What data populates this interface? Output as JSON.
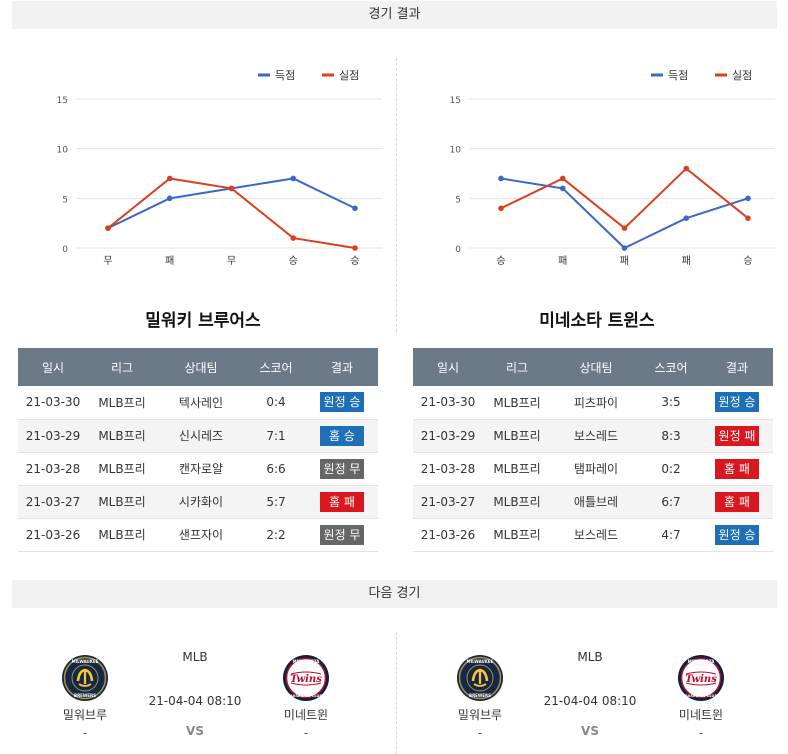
{
  "sections": {
    "results": "경기 결과",
    "next": "다음 경기"
  },
  "legend": {
    "scored": "득점",
    "conceded": "실점"
  },
  "colors": {
    "scored": "#3a67c8",
    "conceded": "#d9401f",
    "away_win": "#1f6fb8",
    "home_win": "#1f6fb8",
    "draw": "#666666",
    "loss": "#d9171e"
  },
  "chart_data": [
    {
      "type": "line",
      "categories": [
        "무",
        "패",
        "무",
        "승",
        "승"
      ],
      "series": [
        {
          "name": "득점",
          "values": [
            2,
            5,
            6,
            7,
            4
          ]
        },
        {
          "name": "실점",
          "values": [
            2,
            7,
            6,
            1,
            0
          ]
        }
      ],
      "ylim": [
        0,
        15
      ],
      "yticks": [
        0,
        5,
        10,
        15
      ],
      "grid": true,
      "legend": "top-right"
    },
    {
      "type": "line",
      "categories": [
        "승",
        "패",
        "패",
        "패",
        "승"
      ],
      "series": [
        {
          "name": "득점",
          "values": [
            7,
            6,
            0,
            3,
            5
          ]
        },
        {
          "name": "실점",
          "values": [
            4,
            7,
            2,
            8,
            3
          ]
        }
      ],
      "ylim": [
        0,
        15
      ],
      "yticks": [
        0,
        5,
        10,
        15
      ],
      "grid": true,
      "legend": "top-right"
    }
  ],
  "table_headers": [
    "일시",
    "리그",
    "상대팀",
    "스코어",
    "결과"
  ],
  "teams": [
    {
      "title": "밀워키 브루어스",
      "rows": [
        {
          "date": "21-03-30",
          "league": "MLB프리",
          "opponent": "텍사레인",
          "score": "0:4",
          "result": "원정 승",
          "result_type": "away_win"
        },
        {
          "date": "21-03-29",
          "league": "MLB프리",
          "opponent": "신시레즈",
          "score": "7:1",
          "result": "홈 승",
          "result_type": "home_win"
        },
        {
          "date": "21-03-28",
          "league": "MLB프리",
          "opponent": "캔자로얄",
          "score": "6:6",
          "result": "원정 무",
          "result_type": "draw"
        },
        {
          "date": "21-03-27",
          "league": "MLB프리",
          "opponent": "시카화이",
          "score": "5:7",
          "result": "홈 패",
          "result_type": "loss"
        },
        {
          "date": "21-03-26",
          "league": "MLB프리",
          "opponent": "샌프자이",
          "score": "2:2",
          "result": "원정 무",
          "result_type": "draw"
        }
      ]
    },
    {
      "title": "미네소타 트윈스",
      "rows": [
        {
          "date": "21-03-30",
          "league": "MLB프리",
          "opponent": "피츠파이",
          "score": "3:5",
          "result": "원정 승",
          "result_type": "away_win"
        },
        {
          "date": "21-03-29",
          "league": "MLB프리",
          "opponent": "보스레드",
          "score": "8:3",
          "result": "원정 패",
          "result_type": "loss"
        },
        {
          "date": "21-03-28",
          "league": "MLB프리",
          "opponent": "탬파레이",
          "score": "0:2",
          "result": "홈 패",
          "result_type": "loss"
        },
        {
          "date": "21-03-27",
          "league": "MLB프리",
          "opponent": "애틀브레",
          "score": "6:7",
          "result": "홈 패",
          "result_type": "loss"
        },
        {
          "date": "21-03-26",
          "league": "MLB프리",
          "opponent": "보스레드",
          "score": "4:7",
          "result": "원정 승",
          "result_type": "away_win"
        }
      ]
    }
  ],
  "next_matches": [
    {
      "league": "MLB",
      "time": "21-04-04 08:10",
      "vs": "VS",
      "home": {
        "name": "밀워브루",
        "score": "-",
        "logo_icon": "brewers-logo-icon",
        "logo_text_top": "MILWAUKEE",
        "logo_text_bottom": "BREWERS"
      },
      "away": {
        "name": "미네트윈",
        "score": "-",
        "logo_icon": "twins-logo-icon",
        "logo_text_top": "MINNESOTA",
        "logo_text_bottom": "BASEBALL CLUB"
      }
    },
    {
      "league": "MLB",
      "time": "21-04-04 08:10",
      "vs": "VS",
      "home": {
        "name": "밀워브루",
        "score": "-",
        "logo_icon": "brewers-logo-icon",
        "logo_text_top": "MILWAUKEE",
        "logo_text_bottom": "BREWERS"
      },
      "away": {
        "name": "미네트윈",
        "score": "-",
        "logo_icon": "twins-logo-icon",
        "logo_text_top": "MINNESOTA",
        "logo_text_bottom": "BASEBALL CLUB"
      }
    }
  ]
}
